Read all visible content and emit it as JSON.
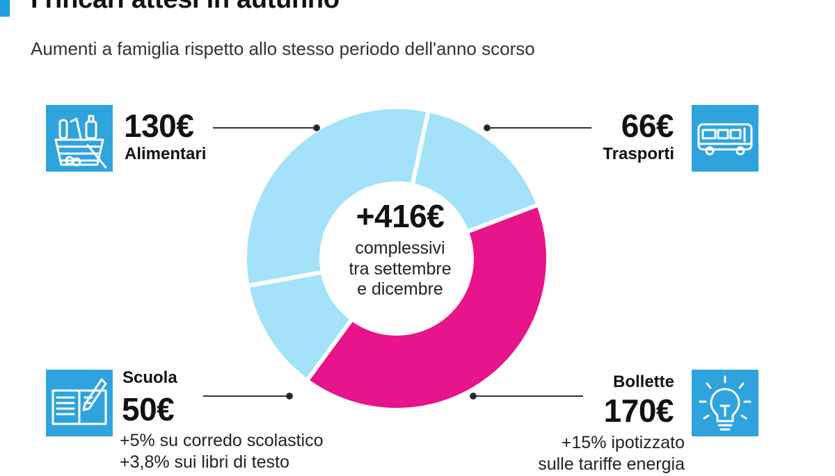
{
  "header": {
    "title": "I rincari attesi in autunno",
    "subtitle": "Aumenti a famiglia rispetto allo stesso periodo dell'anno scorso"
  },
  "center": {
    "total": "+416€",
    "caption_lines": [
      "complessivi",
      "tra settembre",
      "e dicembre"
    ]
  },
  "categories": {
    "alimentari": {
      "value": "130€",
      "label": "Alimentari"
    },
    "trasporti": {
      "value": "66€",
      "label": "Trasporti"
    },
    "scuola": {
      "value": "50€",
      "label": "Scuola",
      "notes": [
        "+5% su corredo scolastico",
        "+3,8% sui libri di testo"
      ]
    },
    "bollette": {
      "value": "170€",
      "label": "Bollette",
      "notes": [
        "+15% ipotizzato",
        "sulle tariffe energia"
      ]
    }
  },
  "colors": {
    "light_slice": "#a3e2f9",
    "highlight_slice": "#e8148c",
    "icon_background": "#2ea3dd",
    "accent": "#1d9fe0"
  },
  "icons": {
    "alimentari": "grocery-basket-icon",
    "trasporti": "bus-icon",
    "scuola": "book-pencil-icon",
    "bollette": "lightbulb-icon"
  },
  "chart_data": {
    "type": "pie",
    "variant": "donut",
    "total": 416,
    "unit": "€",
    "slices": [
      {
        "name": "Trasporti",
        "value": 66,
        "color": "#a3e2f9"
      },
      {
        "name": "Bollette",
        "value": 170,
        "color": "#e8148c"
      },
      {
        "name": "Scuola",
        "value": 50,
        "color": "#a3e2f9"
      },
      {
        "name": "Alimentari",
        "value": 130,
        "color": "#a3e2f9"
      }
    ]
  }
}
